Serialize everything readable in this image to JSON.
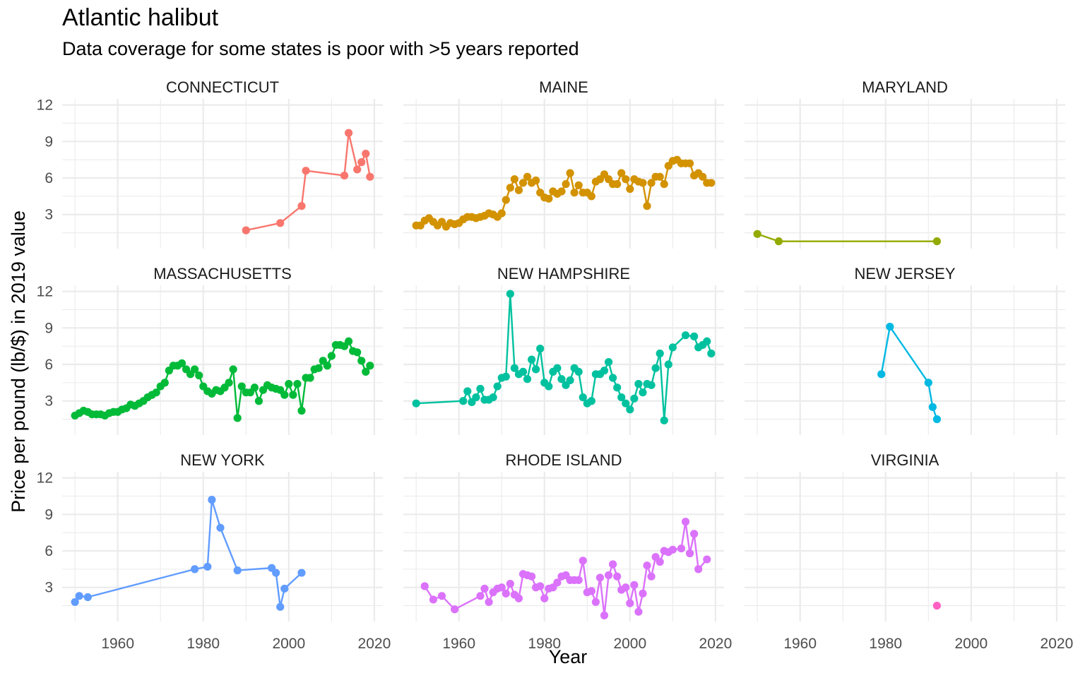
{
  "chart_data": {
    "type": "line",
    "title": "Atlantic halibut",
    "subtitle": "Data coverage for some states is poor with >5 years reported",
    "xlabel": "Year",
    "ylabel": "Price per pound (lb/$) in 2019 value",
    "xlim": [
      1947,
      2022
    ],
    "ylim": [
      0.2,
      12.5
    ],
    "x_ticks": [
      1960,
      1980,
      2000,
      2020
    ],
    "y_ticks": [
      3,
      6,
      9,
      12
    ],
    "grid": true,
    "legend": "none",
    "series": [
      {
        "name": "CONNECTICUT",
        "color": "#F8766D",
        "x": [
          1990,
          1998,
          2003,
          2004,
          2013,
          2014,
          2016,
          2017,
          2018,
          2019
        ],
        "y": [
          1.7,
          2.3,
          3.7,
          6.6,
          6.2,
          9.7,
          6.7,
          7.3,
          8.0,
          6.1
        ]
      },
      {
        "name": "MAINE",
        "color": "#D39200",
        "x": [
          1950,
          1951,
          1952,
          1953,
          1954,
          1955,
          1956,
          1957,
          1958,
          1959,
          1960,
          1961,
          1962,
          1963,
          1964,
          1965,
          1966,
          1967,
          1968,
          1969,
          1970,
          1971,
          1972,
          1973,
          1974,
          1975,
          1976,
          1977,
          1978,
          1979,
          1980,
          1981,
          1982,
          1983,
          1984,
          1985,
          1986,
          1987,
          1988,
          1989,
          1990,
          1991,
          1992,
          1993,
          1994,
          1995,
          1996,
          1997,
          1998,
          1999,
          2000,
          2001,
          2002,
          2003,
          2004,
          2005,
          2006,
          2007,
          2008,
          2009,
          2010,
          2011,
          2012,
          2013,
          2014,
          2015,
          2016,
          2017,
          2018,
          2019
        ],
        "y": [
          2.1,
          2.1,
          2.5,
          2.7,
          2.4,
          2.1,
          2.4,
          2.0,
          2.3,
          2.2,
          2.3,
          2.6,
          2.8,
          2.8,
          2.7,
          2.8,
          2.9,
          3.1,
          3.0,
          2.8,
          3.1,
          4.2,
          5.2,
          5.9,
          5.0,
          5.6,
          6.1,
          5.6,
          5.8,
          4.8,
          4.4,
          4.3,
          4.9,
          4.7,
          4.9,
          5.5,
          6.4,
          4.8,
          5.4,
          4.8,
          4.8,
          4.5,
          5.7,
          5.9,
          6.3,
          5.9,
          5.5,
          5.5,
          6.4,
          5.9,
          5.1,
          5.9,
          5.7,
          5.6,
          3.7,
          5.6,
          6.1,
          6.1,
          5.5,
          7.0,
          7.4,
          7.5,
          7.2,
          7.2,
          7.2,
          6.2,
          6.4,
          6.1,
          5.6,
          5.6
        ]
      },
      {
        "name": "MARYLAND",
        "color": "#93AA00",
        "x": [
          1950,
          1955,
          1992
        ],
        "y": [
          1.4,
          0.8,
          0.8
        ]
      },
      {
        "name": "MASSACHUSETTS",
        "color": "#00BA38",
        "x": [
          1950,
          1951,
          1952,
          1953,
          1954,
          1955,
          1956,
          1957,
          1958,
          1959,
          1960,
          1961,
          1962,
          1963,
          1964,
          1965,
          1966,
          1967,
          1968,
          1969,
          1970,
          1971,
          1972,
          1973,
          1974,
          1975,
          1976,
          1977,
          1978,
          1979,
          1980,
          1981,
          1982,
          1983,
          1984,
          1985,
          1986,
          1987,
          1988,
          1989,
          1990,
          1991,
          1992,
          1993,
          1994,
          1995,
          1996,
          1997,
          1998,
          1999,
          2000,
          2001,
          2002,
          2003,
          2004,
          2005,
          2006,
          2007,
          2008,
          2009,
          2010,
          2011,
          2012,
          2013,
          2014,
          2015,
          2016,
          2017,
          2018,
          2019
        ],
        "y": [
          1.8,
          2.0,
          2.2,
          2.1,
          1.9,
          1.9,
          1.9,
          1.8,
          2.0,
          2.1,
          2.1,
          2.3,
          2.4,
          2.7,
          2.6,
          2.8,
          3.0,
          3.3,
          3.5,
          3.7,
          4.2,
          4.5,
          5.5,
          5.9,
          5.9,
          6.1,
          5.6,
          5.2,
          5.6,
          5.1,
          4.2,
          3.8,
          3.6,
          3.9,
          3.8,
          4.1,
          4.5,
          5.6,
          1.6,
          4.2,
          3.7,
          3.7,
          4.1,
          3.0,
          3.9,
          4.3,
          4.1,
          4.0,
          3.9,
          3.5,
          4.4,
          3.5,
          4.4,
          2.2,
          4.9,
          4.9,
          5.6,
          5.7,
          6.3,
          5.9,
          6.7,
          7.6,
          7.6,
          7.5,
          7.9,
          7.1,
          7.0,
          6.3,
          5.4,
          5.9
        ]
      },
      {
        "name": "NEW HAMPSHIRE",
        "color": "#00C19F",
        "x": [
          1950,
          1961,
          1962,
          1963,
          1964,
          1965,
          1966,
          1967,
          1968,
          1969,
          1970,
          1971,
          1972,
          1973,
          1974,
          1975,
          1976,
          1977,
          1978,
          1979,
          1980,
          1981,
          1982,
          1983,
          1984,
          1985,
          1986,
          1987,
          1988,
          1989,
          1990,
          1991,
          1992,
          1993,
          1994,
          1995,
          1996,
          1997,
          1998,
          1999,
          2000,
          2001,
          2002,
          2003,
          2004,
          2005,
          2006,
          2007,
          2008,
          2009,
          2010,
          2013,
          2015,
          2016,
          2017,
          2018,
          2019
        ],
        "y": [
          2.8,
          3.0,
          3.8,
          2.9,
          3.3,
          4.0,
          3.1,
          3.1,
          3.3,
          4.2,
          4.9,
          5.0,
          11.8,
          5.7,
          5.2,
          5.4,
          4.8,
          6.4,
          5.6,
          7.3,
          4.5,
          4.2,
          5.4,
          5.7,
          4.8,
          4.3,
          4.7,
          5.7,
          5.4,
          3.3,
          2.8,
          3.0,
          5.2,
          5.2,
          5.5,
          6.2,
          4.9,
          4.1,
          3.3,
          2.8,
          2.3,
          3.2,
          4.4,
          3.7,
          4.4,
          4.3,
          5.7,
          6.9,
          1.4,
          6.0,
          7.4,
          8.4,
          8.3,
          7.4,
          7.6,
          7.9,
          6.9
        ]
      },
      {
        "name": "NEW JERSEY",
        "color": "#00B9E3",
        "x": [
          1979,
          1981,
          1990,
          1991,
          1992
        ],
        "y": [
          5.2,
          9.1,
          4.5,
          2.5,
          1.5
        ]
      },
      {
        "name": "NEW YORK",
        "color": "#619CFF",
        "x": [
          1950,
          1951,
          1953,
          1978,
          1981,
          1982,
          1984,
          1988,
          1996,
          1997,
          1998,
          1999,
          2003
        ],
        "y": [
          1.8,
          2.3,
          2.2,
          4.5,
          4.7,
          10.2,
          7.9,
          4.4,
          4.6,
          4.2,
          1.4,
          2.9,
          4.2
        ]
      },
      {
        "name": "RHODE ISLAND",
        "color": "#DB72FB",
        "x": [
          1952,
          1954,
          1956,
          1959,
          1965,
          1966,
          1967,
          1968,
          1969,
          1970,
          1971,
          1972,
          1973,
          1974,
          1975,
          1976,
          1977,
          1978,
          1979,
          1980,
          1981,
          1982,
          1983,
          1984,
          1985,
          1986,
          1987,
          1988,
          1989,
          1990,
          1991,
          1992,
          1993,
          1994,
          1995,
          1996,
          1997,
          1998,
          1999,
          2000,
          2001,
          2002,
          2003,
          2004,
          2005,
          2006,
          2007,
          2008,
          2009,
          2010,
          2012,
          2013,
          2014,
          2015,
          2016,
          2018
        ],
        "y": [
          3.1,
          2.0,
          2.3,
          1.2,
          2.3,
          2.9,
          1.8,
          2.6,
          2.9,
          3.0,
          2.5,
          3.3,
          2.4,
          2.1,
          4.1,
          4.0,
          3.9,
          3.0,
          3.1,
          2.1,
          2.9,
          3.0,
          3.4,
          3.9,
          4.0,
          3.6,
          3.6,
          3.6,
          5.2,
          2.6,
          2.7,
          1.8,
          3.8,
          0.7,
          4.0,
          4.9,
          3.9,
          2.8,
          3.0,
          1.7,
          3.2,
          1.0,
          2.5,
          4.8,
          3.9,
          5.5,
          5.1,
          6.0,
          5.9,
          6.1,
          6.2,
          8.4,
          5.8,
          7.4,
          4.5,
          5.3
        ]
      },
      {
        "name": "VIRGINIA",
        "color": "#FF61C3",
        "x": [
          1992
        ],
        "y": [
          1.5
        ]
      }
    ]
  }
}
